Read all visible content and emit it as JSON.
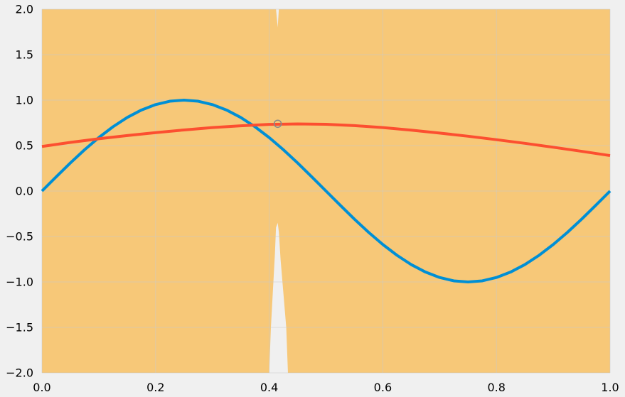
{
  "colors": {
    "figure_background": "#f0f0f0",
    "fill_region": "#f7c878",
    "grid": "#cbcbcb",
    "marker_edge": "#8a8a8a"
  },
  "chart_data": {
    "type": "line",
    "title": "",
    "xlabel": "",
    "ylabel": "",
    "xlim": [
      0.0,
      1.0
    ],
    "ylim": [
      -2.0,
      2.0
    ],
    "grid": true,
    "legend": "none",
    "x_ticks": [
      {
        "value": 0.0,
        "label": "0.0"
      },
      {
        "value": 0.2,
        "label": "0.2"
      },
      {
        "value": 0.4,
        "label": "0.4"
      },
      {
        "value": 0.6,
        "label": "0.6"
      },
      {
        "value": 0.8,
        "label": "0.8"
      },
      {
        "value": 1.0,
        "label": "1.0"
      }
    ],
    "y_ticks": [
      {
        "value": -2.0,
        "label": "−2.0"
      },
      {
        "value": -1.5,
        "label": "−1.5"
      },
      {
        "value": -1.0,
        "label": "−1.0"
      },
      {
        "value": -0.5,
        "label": "−0.5"
      },
      {
        "value": 0.0,
        "label": "0.0"
      },
      {
        "value": 0.5,
        "label": "0.5"
      },
      {
        "value": 1.0,
        "label": "1.0"
      },
      {
        "value": 1.5,
        "label": "1.5"
      },
      {
        "value": 2.0,
        "label": "2.0"
      }
    ],
    "fill_regions": [
      {
        "color": "#f7c878",
        "x": [
          0.0,
          0.4,
          0.403,
          0.41,
          0.412,
          0.415,
          0.417,
          0.42,
          0.43,
          0.433,
          1.0
        ],
        "y_upper": [
          2.0,
          2.0,
          2.0,
          2.0,
          2.0,
          1.8,
          2.0,
          2.0,
          2.0,
          2.0,
          2.0
        ],
        "y_lower": [
          -2.0,
          -2.0,
          -1.5,
          -0.7,
          -0.4,
          -0.35,
          -0.45,
          -0.75,
          -1.5,
          -2.0,
          -2.0
        ]
      }
    ],
    "series": [
      {
        "color": "#008fd5",
        "x": [
          0.0,
          0.025,
          0.05,
          0.075,
          0.1,
          0.125,
          0.15,
          0.175,
          0.2,
          0.225,
          0.25,
          0.275,
          0.3,
          0.325,
          0.35,
          0.375,
          0.4,
          0.425,
          0.45,
          0.475,
          0.5,
          0.525,
          0.55,
          0.575,
          0.6,
          0.625,
          0.65,
          0.675,
          0.7,
          0.725,
          0.75,
          0.775,
          0.8,
          0.825,
          0.85,
          0.875,
          0.9,
          0.925,
          0.95,
          0.975,
          1.0
        ],
        "y": [
          0.0,
          0.156,
          0.309,
          0.454,
          0.588,
          0.707,
          0.809,
          0.891,
          0.951,
          0.988,
          1.0,
          0.988,
          0.951,
          0.891,
          0.809,
          0.707,
          0.588,
          0.454,
          0.309,
          0.156,
          0.0,
          -0.156,
          -0.309,
          -0.454,
          -0.588,
          -0.707,
          -0.809,
          -0.891,
          -0.951,
          -0.988,
          -1.0,
          -0.988,
          -0.951,
          -0.891,
          -0.809,
          -0.707,
          -0.588,
          -0.454,
          -0.309,
          -0.156,
          0.0
        ]
      },
      {
        "color": "#fc4f30",
        "x": [
          0.0,
          0.05,
          0.1,
          0.15,
          0.2,
          0.25,
          0.3,
          0.35,
          0.4,
          0.45,
          0.5,
          0.55,
          0.6,
          0.65,
          0.7,
          0.75,
          0.8,
          0.85,
          0.9,
          0.95,
          1.0
        ],
        "y": [
          0.49,
          0.535,
          0.575,
          0.61,
          0.643,
          0.672,
          0.698,
          0.718,
          0.733,
          0.738,
          0.734,
          0.72,
          0.698,
          0.67,
          0.638,
          0.603,
          0.565,
          0.525,
          0.482,
          0.437,
          0.39
        ]
      }
    ],
    "markers": [
      {
        "x": 0.415,
        "y": 0.74,
        "shape": "circle",
        "filled": false,
        "color": "#8a8a8a"
      }
    ]
  }
}
